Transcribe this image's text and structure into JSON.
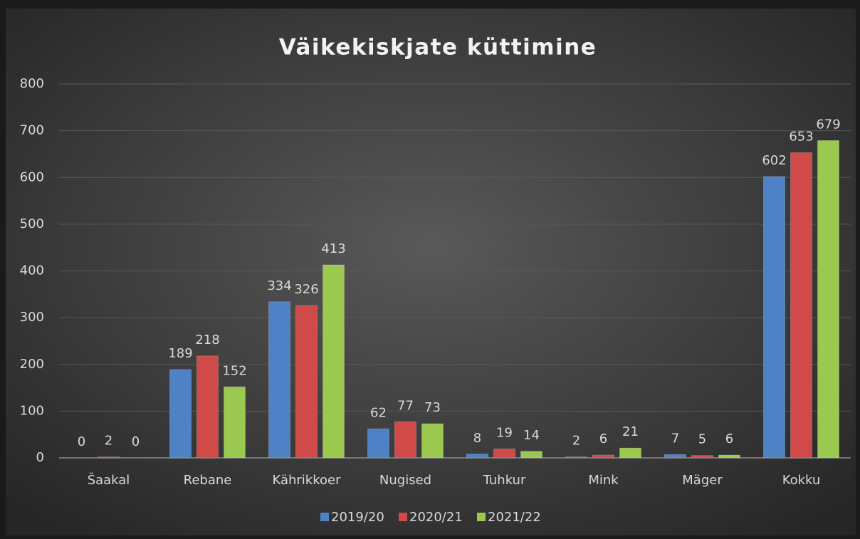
{
  "chart_data": {
    "type": "bar",
    "title": "Väikekiskjate küttimine",
    "categories": [
      "Šaakal",
      "Rebane",
      "Kährikkoer",
      "Nugised",
      "Tuhkur",
      "Mink",
      "Mäger",
      "Kokku"
    ],
    "series": [
      {
        "name": "2019/20",
        "color": "#4f81c7",
        "values": [
          0,
          189,
          334,
          62,
          8,
          2,
          7,
          602
        ]
      },
      {
        "name": "2020/21",
        "color": "#d14a4a",
        "values": [
          2,
          218,
          326,
          77,
          19,
          6,
          5,
          653
        ]
      },
      {
        "name": "2021/22",
        "color": "#9bc94f",
        "values": [
          0,
          152,
          413,
          73,
          14,
          21,
          6,
          679
        ]
      }
    ],
    "ylim": [
      0,
      800
    ],
    "yticks": [
      0,
      100,
      200,
      300,
      400,
      500,
      600,
      700,
      800
    ],
    "grid": true,
    "legend": "bottom"
  }
}
